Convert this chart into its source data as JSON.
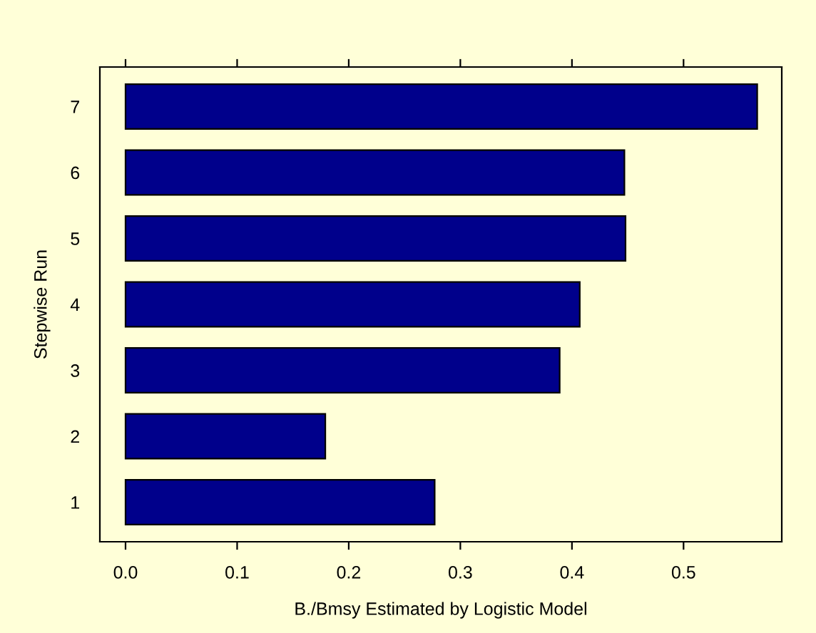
{
  "chart_data": {
    "type": "bar",
    "orientation": "horizontal",
    "xlabel": "B./Bmsy Estimated by Logistic Model",
    "ylabel": "Stepwise Run",
    "categories": [
      "7",
      "6",
      "5",
      "4",
      "3",
      "2",
      "1"
    ],
    "values": [
      0.566,
      0.447,
      0.448,
      0.407,
      0.389,
      0.179,
      0.277
    ],
    "color": "#00008b",
    "xlim": [
      -0.023,
      0.588
    ],
    "xticks": [
      {
        "value": 0,
        "label": "0.0"
      },
      0.1,
      0.2,
      0.3,
      0.4,
      0.5
    ],
    "grid": false
  }
}
